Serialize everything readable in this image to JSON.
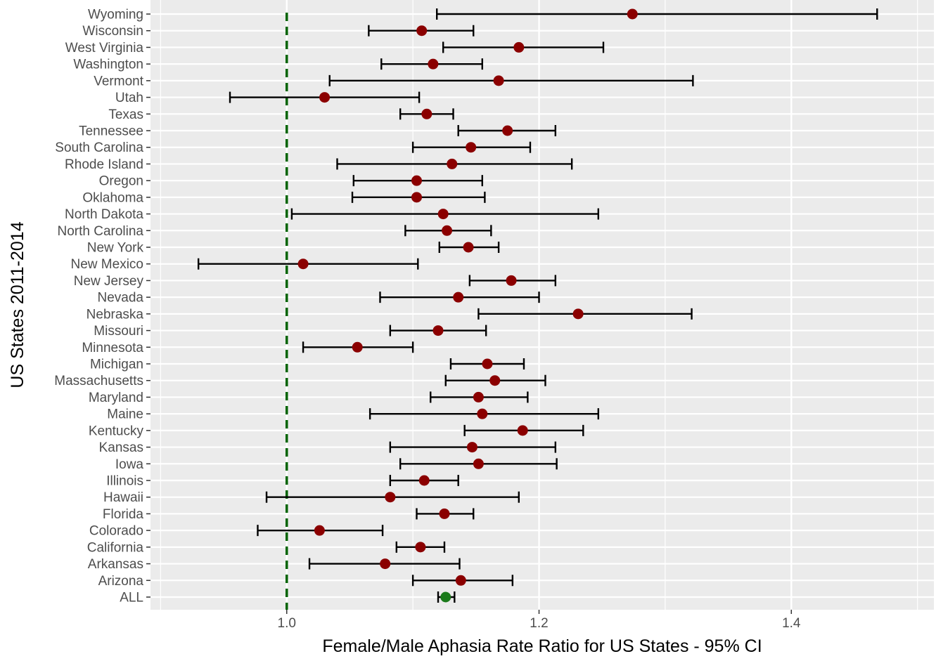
{
  "chart_data": {
    "type": "scatter",
    "subtype": "forest-plot-with-error-bars",
    "title": "",
    "xlabel": "Female/Male Aphasia Rate Ratio for US States - 95% CI",
    "ylabel": "US States 2011-2014",
    "xlim": [
      0.892,
      1.513
    ],
    "x_ticks": [
      1.0,
      1.2,
      1.4
    ],
    "x_tick_labels": [
      "1.0",
      "1.2",
      "1.4"
    ],
    "reference_line": {
      "x": 1.0,
      "style": "dashed",
      "color": "#006400"
    },
    "grid": true,
    "legend": "none",
    "colors": {
      "state_point": "#8b0000",
      "overall_point": "#1a7a1a",
      "error_bar": "#000000",
      "panel_bg": "#ebebeb",
      "grid": "#ffffff"
    },
    "points": [
      {
        "label": "Wyoming",
        "estimate": 1.274,
        "lower": 1.119,
        "upper": 1.468
      },
      {
        "label": "Wisconsin",
        "estimate": 1.107,
        "lower": 1.065,
        "upper": 1.148
      },
      {
        "label": "West Virginia",
        "estimate": 1.184,
        "lower": 1.124,
        "upper": 1.251
      },
      {
        "label": "Washington",
        "estimate": 1.116,
        "lower": 1.075,
        "upper": 1.155
      },
      {
        "label": "Vermont",
        "estimate": 1.168,
        "lower": 1.034,
        "upper": 1.322
      },
      {
        "label": "Utah",
        "estimate": 1.03,
        "lower": 0.955,
        "upper": 1.105
      },
      {
        "label": "Texas",
        "estimate": 1.111,
        "lower": 1.09,
        "upper": 1.132
      },
      {
        "label": "Tennessee",
        "estimate": 1.175,
        "lower": 1.136,
        "upper": 1.213
      },
      {
        "label": "South Carolina",
        "estimate": 1.146,
        "lower": 1.1,
        "upper": 1.193
      },
      {
        "label": "Rhode Island",
        "estimate": 1.131,
        "lower": 1.04,
        "upper": 1.226
      },
      {
        "label": "Oregon",
        "estimate": 1.103,
        "lower": 1.053,
        "upper": 1.155
      },
      {
        "label": "Oklahoma",
        "estimate": 1.103,
        "lower": 1.052,
        "upper": 1.157
      },
      {
        "label": "North Dakota",
        "estimate": 1.124,
        "lower": 1.004,
        "upper": 1.247
      },
      {
        "label": "North Carolina",
        "estimate": 1.127,
        "lower": 1.094,
        "upper": 1.162
      },
      {
        "label": "New York",
        "estimate": 1.144,
        "lower": 1.121,
        "upper": 1.168
      },
      {
        "label": "New Mexico",
        "estimate": 1.013,
        "lower": 0.93,
        "upper": 1.104
      },
      {
        "label": "New Jersey",
        "estimate": 1.178,
        "lower": 1.145,
        "upper": 1.213
      },
      {
        "label": "Nevada",
        "estimate": 1.136,
        "lower": 1.074,
        "upper": 1.2
      },
      {
        "label": "Nebraska",
        "estimate": 1.231,
        "lower": 1.152,
        "upper": 1.321
      },
      {
        "label": "Missouri",
        "estimate": 1.12,
        "lower": 1.082,
        "upper": 1.158
      },
      {
        "label": "Minnesota",
        "estimate": 1.056,
        "lower": 1.013,
        "upper": 1.1
      },
      {
        "label": "Michigan",
        "estimate": 1.159,
        "lower": 1.13,
        "upper": 1.188
      },
      {
        "label": "Massachusetts",
        "estimate": 1.165,
        "lower": 1.126,
        "upper": 1.205
      },
      {
        "label": "Maryland",
        "estimate": 1.152,
        "lower": 1.114,
        "upper": 1.191
      },
      {
        "label": "Maine",
        "estimate": 1.155,
        "lower": 1.066,
        "upper": 1.247
      },
      {
        "label": "Kentucky",
        "estimate": 1.187,
        "lower": 1.141,
        "upper": 1.235
      },
      {
        "label": "Kansas",
        "estimate": 1.147,
        "lower": 1.082,
        "upper": 1.213
      },
      {
        "label": "Iowa",
        "estimate": 1.152,
        "lower": 1.09,
        "upper": 1.214
      },
      {
        "label": "Illinois",
        "estimate": 1.109,
        "lower": 1.082,
        "upper": 1.136
      },
      {
        "label": "Hawaii",
        "estimate": 1.082,
        "lower": 0.984,
        "upper": 1.184
      },
      {
        "label": "Florida",
        "estimate": 1.125,
        "lower": 1.103,
        "upper": 1.148
      },
      {
        "label": "Colorado",
        "estimate": 1.026,
        "lower": 0.977,
        "upper": 1.076
      },
      {
        "label": "California",
        "estimate": 1.106,
        "lower": 1.087,
        "upper": 1.125
      },
      {
        "label": "Arkansas",
        "estimate": 1.078,
        "lower": 1.018,
        "upper": 1.137
      },
      {
        "label": "Arizona",
        "estimate": 1.138,
        "lower": 1.1,
        "upper": 1.179
      },
      {
        "label": "ALL",
        "estimate": 1.126,
        "lower": 1.12,
        "upper": 1.133,
        "overall": true
      }
    ]
  }
}
